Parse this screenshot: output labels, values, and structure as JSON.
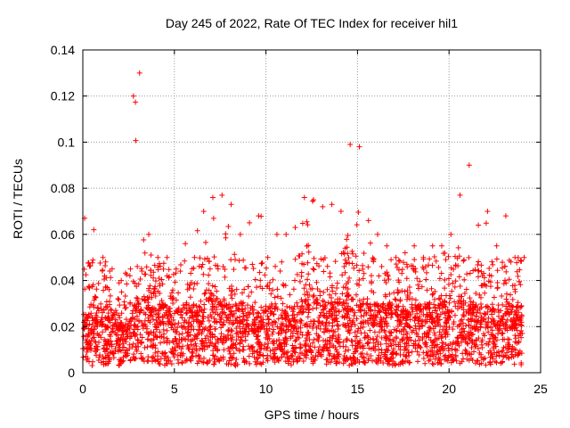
{
  "chart_data": {
    "type": "scatter",
    "title": "Day 245 of 2022, Rate Of TEC Index for receiver hil1",
    "xlabel": "GPS time / hours",
    "ylabel": "ROTI / TECUs",
    "xlim": [
      0,
      25
    ],
    "ylim": [
      0,
      0.14
    ],
    "xticks": [
      "0",
      "5",
      "10",
      "15",
      "20",
      "25"
    ],
    "yticks": [
      "0",
      "0.02",
      "0.04",
      "0.06",
      "0.08",
      "0.1",
      "0.12",
      "0.14"
    ],
    "grid": true,
    "marker": "+",
    "color": "#ff0000",
    "series": [
      {
        "x": [
          0.0,
          0.5,
          1.0,
          1.5,
          2.0,
          2.5,
          3.0,
          3.5,
          4.0,
          4.5,
          5.0,
          5.5,
          6.0,
          6.5,
          7.0,
          7.5,
          8.0,
          8.5,
          9.0,
          9.5,
          10.0,
          10.5,
          11.0,
          11.5,
          12.0,
          12.5,
          13.0,
          13.5,
          14.0,
          14.5,
          15.0,
          15.5,
          16.0,
          16.5,
          17.0,
          17.5,
          18.0,
          18.5,
          19.0,
          19.5,
          20.0,
          20.5,
          21.0,
          21.5,
          22.0,
          22.5,
          23.0,
          23.5,
          24.0
        ],
        "y": [
          0.015,
          0.02,
          0.02,
          0.018,
          0.015,
          0.015,
          0.02,
          0.025,
          0.02,
          0.02,
          0.018,
          0.02,
          0.02,
          0.02,
          0.025,
          0.02,
          0.02,
          0.02,
          0.02,
          0.015,
          0.02,
          0.02,
          0.02,
          0.018,
          0.025,
          0.025,
          0.02,
          0.02,
          0.025,
          0.025,
          0.02,
          0.02,
          0.02,
          0.02,
          0.02,
          0.018,
          0.02,
          0.02,
          0.02,
          0.02,
          0.025,
          0.025,
          0.02,
          0.02,
          0.02,
          0.018,
          0.02,
          0.02,
          0.02
        ],
        "max": [
          0.067,
          0.062,
          0.05,
          0.045,
          0.04,
          0.045,
          0.13,
          0.06,
          0.05,
          0.05,
          0.045,
          0.056,
          0.05,
          0.07,
          0.076,
          0.077,
          0.073,
          0.06,
          0.065,
          0.068,
          0.05,
          0.06,
          0.06,
          0.063,
          0.076,
          0.075,
          0.072,
          0.073,
          0.07,
          0.099,
          0.098,
          0.066,
          0.06,
          0.055,
          0.05,
          0.052,
          0.055,
          0.05,
          0.055,
          0.055,
          0.06,
          0.077,
          0.09,
          0.064,
          0.07,
          0.055,
          0.068,
          0.05,
          0.05
        ],
        "min": [
          0.005,
          0.003,
          0.003,
          0.004,
          0.003,
          0.004,
          0.006,
          0.004,
          0.004,
          0.003,
          0.004,
          0.004,
          0.003,
          0.004,
          0.003,
          0.004,
          0.003,
          0.003,
          0.004,
          0.003,
          0.004,
          0.004,
          0.004,
          0.003,
          0.004,
          0.004,
          0.003,
          0.004,
          0.003,
          0.003,
          0.004,
          0.004,
          0.004,
          0.004,
          0.003,
          0.004,
          0.004,
          0.003,
          0.004,
          0.003,
          0.004,
          0.004,
          0.004,
          0.004,
          0.003,
          0.004,
          0.004,
          0.003,
          0.003
        ]
      }
    ]
  }
}
